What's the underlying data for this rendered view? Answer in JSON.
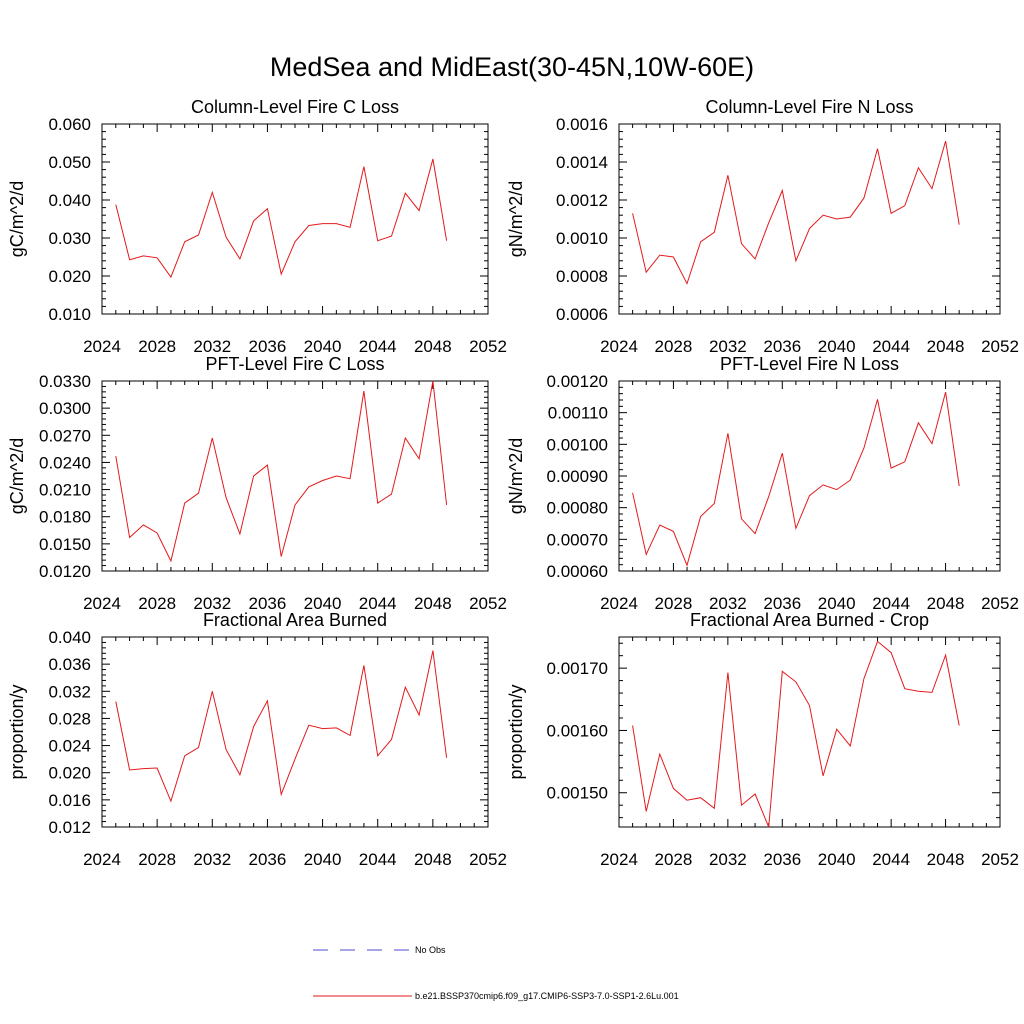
{
  "figure": {
    "title": "MedSea and MidEast(30-45N,10W-60E)"
  },
  "legend": {
    "entries": [
      {
        "label": "No Obs",
        "color": "#4b4bd2",
        "style": "dashed"
      },
      {
        "label": "b.e21.BSSP370cmip6.f09_g17.CMIP6-SSP3-7.0-SSP1-2.6Lu.001",
        "color": "#e31a1c",
        "style": "solid"
      }
    ]
  },
  "chart_data": [
    {
      "type": "line",
      "title": "Column-Level Fire C Loss",
      "xlabel": "",
      "ylabel": "gC/m^2/d",
      "xlim": [
        2024,
        2052
      ],
      "ylim": [
        0.01,
        0.06
      ],
      "xticks": [
        "2024",
        "2028",
        "2032",
        "2036",
        "2040",
        "2044",
        "2048",
        "2052"
      ],
      "yticks": [
        "0.010",
        "0.020",
        "0.030",
        "0.040",
        "0.050",
        "0.060"
      ],
      "x": [
        2025,
        2026,
        2027,
        2028,
        2029,
        2030,
        2031,
        2032,
        2033,
        2034,
        2035,
        2036,
        2037,
        2038,
        2039,
        2040,
        2041,
        2042,
        2043,
        2044,
        2045,
        2046,
        2047,
        2048,
        2049
      ],
      "series": [
        {
          "color": "#e31a1c",
          "values": [
            0.0388,
            0.0243,
            0.0253,
            0.0248,
            0.0197,
            0.029,
            0.0308,
            0.042,
            0.0302,
            0.0245,
            0.0345,
            0.0377,
            0.0205,
            0.029,
            0.0333,
            0.0338,
            0.0338,
            0.0328,
            0.0488,
            0.0293,
            0.0305,
            0.0418,
            0.0372,
            0.0508,
            0.0293
          ]
        }
      ]
    },
    {
      "type": "line",
      "title": "Column-Level Fire N Loss",
      "xlabel": "",
      "ylabel": "gN/m^2/d",
      "xlim": [
        2024,
        2052
      ],
      "ylim": [
        0.0006,
        0.0016
      ],
      "xticks": [
        "2024",
        "2028",
        "2032",
        "2036",
        "2040",
        "2044",
        "2048",
        "2052"
      ],
      "yticks": [
        "0.0006",
        "0.0008",
        "0.0010",
        "0.0012",
        "0.0014",
        "0.0016"
      ],
      "x": [
        2025,
        2026,
        2027,
        2028,
        2029,
        2030,
        2031,
        2032,
        2033,
        2034,
        2035,
        2036,
        2037,
        2038,
        2039,
        2040,
        2041,
        2042,
        2043,
        2044,
        2045,
        2046,
        2047,
        2048,
        2049
      ],
      "series": [
        {
          "color": "#e31a1c",
          "values": [
            0.00113,
            0.00082,
            0.00091,
            0.0009,
            0.00076,
            0.00098,
            0.00103,
            0.00133,
            0.00097,
            0.00089,
            0.00108,
            0.00125,
            0.00088,
            0.00105,
            0.00112,
            0.0011,
            0.00111,
            0.00121,
            0.00147,
            0.00113,
            0.00117,
            0.00137,
            0.00126,
            0.00151,
            0.00107
          ]
        }
      ]
    },
    {
      "type": "line",
      "title": "PFT-Level Fire C Loss",
      "xlabel": "",
      "ylabel": "gC/m^2/d",
      "xlim": [
        2024,
        2052
      ],
      "ylim": [
        0.012,
        0.033
      ],
      "xticks": [
        "2024",
        "2028",
        "2032",
        "2036",
        "2040",
        "2044",
        "2048",
        "2052"
      ],
      "yticks": [
        "0.0120",
        "0.0150",
        "0.0180",
        "0.0210",
        "0.0240",
        "0.0270",
        "0.0300",
        "0.0330"
      ],
      "x": [
        2025,
        2026,
        2027,
        2028,
        2029,
        2030,
        2031,
        2032,
        2033,
        2034,
        2035,
        2036,
        2037,
        2038,
        2039,
        2040,
        2041,
        2042,
        2043,
        2044,
        2045,
        2046,
        2047,
        2048,
        2049
      ],
      "series": [
        {
          "color": "#e31a1c",
          "values": [
            0.0247,
            0.0157,
            0.0171,
            0.0162,
            0.0131,
            0.0195,
            0.0206,
            0.0267,
            0.0201,
            0.0161,
            0.0225,
            0.0237,
            0.0136,
            0.0193,
            0.0213,
            0.022,
            0.0225,
            0.0222,
            0.0319,
            0.0195,
            0.0205,
            0.0267,
            0.0244,
            0.033,
            0.0193
          ]
        }
      ]
    },
    {
      "type": "line",
      "title": "PFT-Level Fire N Loss",
      "xlabel": "",
      "ylabel": "gN/m^2/d",
      "xlim": [
        2024,
        2052
      ],
      "ylim": [
        0.0006,
        0.0012
      ],
      "xticks": [
        "2024",
        "2028",
        "2032",
        "2036",
        "2040",
        "2044",
        "2048",
        "2052"
      ],
      "yticks": [
        "0.00060",
        "0.00070",
        "0.00080",
        "0.00090",
        "0.00100",
        "0.00110",
        "0.00120"
      ],
      "x": [
        2025,
        2026,
        2027,
        2028,
        2029,
        2030,
        2031,
        2032,
        2033,
        2034,
        2035,
        2036,
        2037,
        2038,
        2039,
        2040,
        2041,
        2042,
        2043,
        2044,
        2045,
        2046,
        2047,
        2048,
        2049
      ],
      "series": [
        {
          "color": "#e31a1c",
          "values": [
            0.000847,
            0.000652,
            0.000745,
            0.000725,
            0.000618,
            0.000772,
            0.000813,
            0.001035,
            0.000765,
            0.000718,
            0.000835,
            0.000972,
            0.000735,
            0.000838,
            0.000872,
            0.000857,
            0.000887,
            0.000988,
            0.001142,
            0.000925,
            0.000945,
            0.001068,
            0.001002,
            0.001165,
            0.000868
          ]
        }
      ]
    },
    {
      "type": "line",
      "title": "Fractional Area Burned",
      "xlabel": "",
      "ylabel": "proportion/y",
      "xlim": [
        2024,
        2052
      ],
      "ylim": [
        0.012,
        0.04
      ],
      "xticks": [
        "2024",
        "2028",
        "2032",
        "2036",
        "2040",
        "2044",
        "2048",
        "2052"
      ],
      "yticks": [
        "0.012",
        "0.016",
        "0.020",
        "0.024",
        "0.028",
        "0.032",
        "0.036",
        "0.040"
      ],
      "x": [
        2025,
        2026,
        2027,
        2028,
        2029,
        2030,
        2031,
        2032,
        2033,
        2034,
        2035,
        2036,
        2037,
        2038,
        2039,
        2040,
        2041,
        2042,
        2043,
        2044,
        2045,
        2046,
        2047,
        2048,
        2049
      ],
      "series": [
        {
          "color": "#e31a1c",
          "values": [
            0.0305,
            0.0204,
            0.0206,
            0.0207,
            0.0158,
            0.0225,
            0.0237,
            0.032,
            0.0234,
            0.0197,
            0.0268,
            0.0306,
            0.0168,
            0.022,
            0.027,
            0.0265,
            0.0266,
            0.0255,
            0.0358,
            0.0225,
            0.0249,
            0.0326,
            0.0285,
            0.038,
            0.0222
          ]
        }
      ]
    },
    {
      "type": "line",
      "title": "Fractional Area Burned - Crop",
      "xlabel": "",
      "ylabel": "proportion/y",
      "xlim": [
        2024,
        2052
      ],
      "ylim": [
        0.001445,
        0.00175
      ],
      "xticks": [
        "2024",
        "2028",
        "2032",
        "2036",
        "2040",
        "2044",
        "2048",
        "2052"
      ],
      "yticks": [
        "0.00150",
        "0.00160",
        "0.00170"
      ],
      "ytick_values": [
        0.0015,
        0.0016,
        0.0017
      ],
      "x": [
        2025,
        2026,
        2027,
        2028,
        2029,
        2030,
        2031,
        2032,
        2033,
        2034,
        2035,
        2036,
        2037,
        2038,
        2039,
        2040,
        2041,
        2042,
        2043,
        2044,
        2045,
        2046,
        2047,
        2048,
        2049
      ],
      "series": [
        {
          "color": "#e31a1c",
          "values": [
            0.001608,
            0.00147,
            0.001562,
            0.001507,
            0.001488,
            0.001492,
            0.001475,
            0.001693,
            0.00148,
            0.001498,
            0.001445,
            0.001695,
            0.001678,
            0.00164,
            0.001527,
            0.001602,
            0.001575,
            0.001683,
            0.001743,
            0.001725,
            0.001667,
            0.001663,
            0.001661,
            0.001721,
            0.001608
          ]
        }
      ]
    }
  ]
}
